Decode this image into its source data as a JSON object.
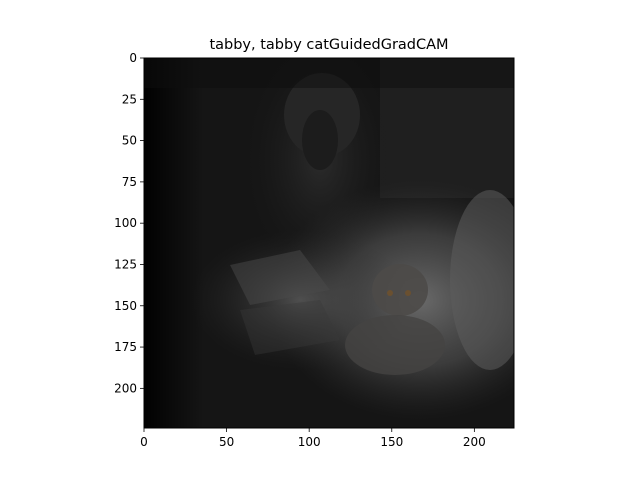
{
  "title": "tabby, tabby catGuidedGradCAM",
  "axes": {
    "xlim": [
      0,
      224
    ],
    "ylim": [
      224,
      0
    ],
    "x_ticks": [
      {
        "value": 0,
        "label": "0"
      },
      {
        "value": 50,
        "label": "50"
      },
      {
        "value": 100,
        "label": "100"
      },
      {
        "value": 150,
        "label": "150"
      },
      {
        "value": 200,
        "label": "200"
      }
    ],
    "y_ticks": [
      {
        "value": 0,
        "label": "0"
      },
      {
        "value": 25,
        "label": "25"
      },
      {
        "value": 50,
        "label": "50"
      },
      {
        "value": 75,
        "label": "75"
      },
      {
        "value": 100,
        "label": "100"
      },
      {
        "value": 125,
        "label": "125"
      },
      {
        "value": 150,
        "label": "150"
      },
      {
        "value": 175,
        "label": "175"
      },
      {
        "value": 200,
        "label": "200"
      }
    ]
  },
  "colors": {
    "background": "#ffffff",
    "image_base": "#141414",
    "highlight": "#6a6a6a",
    "axis": "#000000"
  }
}
